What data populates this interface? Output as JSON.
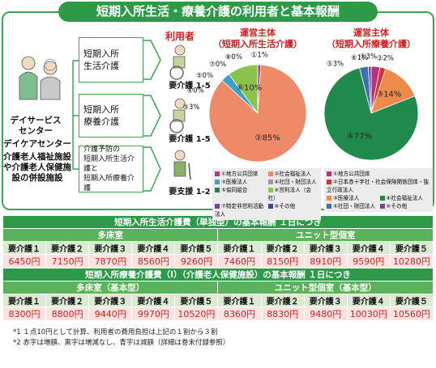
{
  "header": {
    "title": "短期入所生活・療養介護の利用者と基本報酬"
  },
  "facilities": [
    "デイサービスセンター",
    "デイケアセンター",
    "介護老人福祉施設や介護老人保健施設の併設施設"
  ],
  "users_header": "利用者",
  "services": [
    {
      "lines": [
        "短期入所",
        "生活介護"
      ],
      "user_level": "要介護 1-5"
    },
    {
      "lines": [
        "短期入所",
        "療養介護"
      ],
      "user_level": "要介護 1-5"
    },
    {
      "lines": [
        "介護予防の",
        "短期入所生活介護と",
        "短期入所療養介護"
      ],
      "user_level": "要支援 1-2"
    }
  ],
  "chart_data": [
    {
      "type": "pie",
      "title": "運営主体",
      "subtitle": "（短期入所生活介護）",
      "categories": [
        "①地方公共団体",
        "②社会福祉法人",
        "③医療法人",
        "④社団・財団法人",
        "⑤協同組合",
        "⑥営利法人（会社）",
        "⑦特定非営利活動法人",
        "⑧その他"
      ],
      "values": [
        1,
        85,
        3,
        0,
        0,
        10,
        0,
        0
      ],
      "value_labels": [
        "①1%",
        "②85%",
        "③3%",
        "④0%",
        "⑤0%",
        "⑥10%",
        "⑦0%",
        "⑧0%"
      ],
      "colors": [
        "#b8327d",
        "#ee8a67",
        "#3a9fc9",
        "#9a9a9a",
        "#2e7d3e",
        "#8bc34a",
        "#7d3c98",
        "#2b4aa0"
      ]
    },
    {
      "type": "pie",
      "title": "運営主体",
      "subtitle": "（短期入所療養介護）",
      "categories": [
        "①地方公共団体",
        "②日本赤十字社・社会保険関係団体・独立行政法人",
        "③医療法人",
        "④社会福祉法人",
        "⑤社団・財団法人",
        "⑥その他"
      ],
      "values": [
        3,
        2,
        14,
        77,
        3,
        1
      ],
      "value_labels": [
        "①3%",
        "②2%",
        "③14%",
        "④77%",
        "⑤3%",
        "⑥1%"
      ],
      "colors": [
        "#b8327d",
        "#d9302c",
        "#ee8a4a",
        "#1f8a4c",
        "#3f6fb5",
        "#6f4a9a"
      ]
    }
  ],
  "tables": [
    {
      "title": "短期入所生活介護費（単独型）の基本報酬 １日につき",
      "groups": [
        "多床室",
        "ユニット型個室"
      ],
      "columns": [
        "要介護１",
        "要介護２",
        "要介護３",
        "要介護４",
        "要介護５",
        "要介護１",
        "要介護２",
        "要介護３",
        "要介護４",
        "要介護５"
      ],
      "values": [
        "6450円",
        "7150円",
        "7870円",
        "8560円",
        "9260円",
        "7460円",
        "8150円",
        "8910円",
        "9590円",
        "10280円"
      ],
      "value_color": "#d0201f"
    },
    {
      "title": "短期入所療養介護費（Ⅰ）（介護老人保健施設）の基本報酬 １日につき",
      "groups": [
        "多床室（基本型）",
        "ユニット型個室（基本型）"
      ],
      "columns": [
        "要介護１",
        "要介護２",
        "要介護３",
        "要介護４",
        "要介護５",
        "要介護１",
        "要介護２",
        "要介護３",
        "要介護４",
        "要介護５"
      ],
      "values": [
        "8300円",
        "8800円",
        "9440円",
        "9970円",
        "10520円",
        "8360円",
        "8830円",
        "9480円",
        "10030円",
        "10560円"
      ],
      "value_color": "#d0201f"
    }
  ],
  "footnotes": [
    "*1 １点10円として計算、利用者の費用負担は上記の１割から３割",
    "*2 赤字は増額、黒字は増減なし、青字は減額（詳細は巻末付録参照）"
  ]
}
